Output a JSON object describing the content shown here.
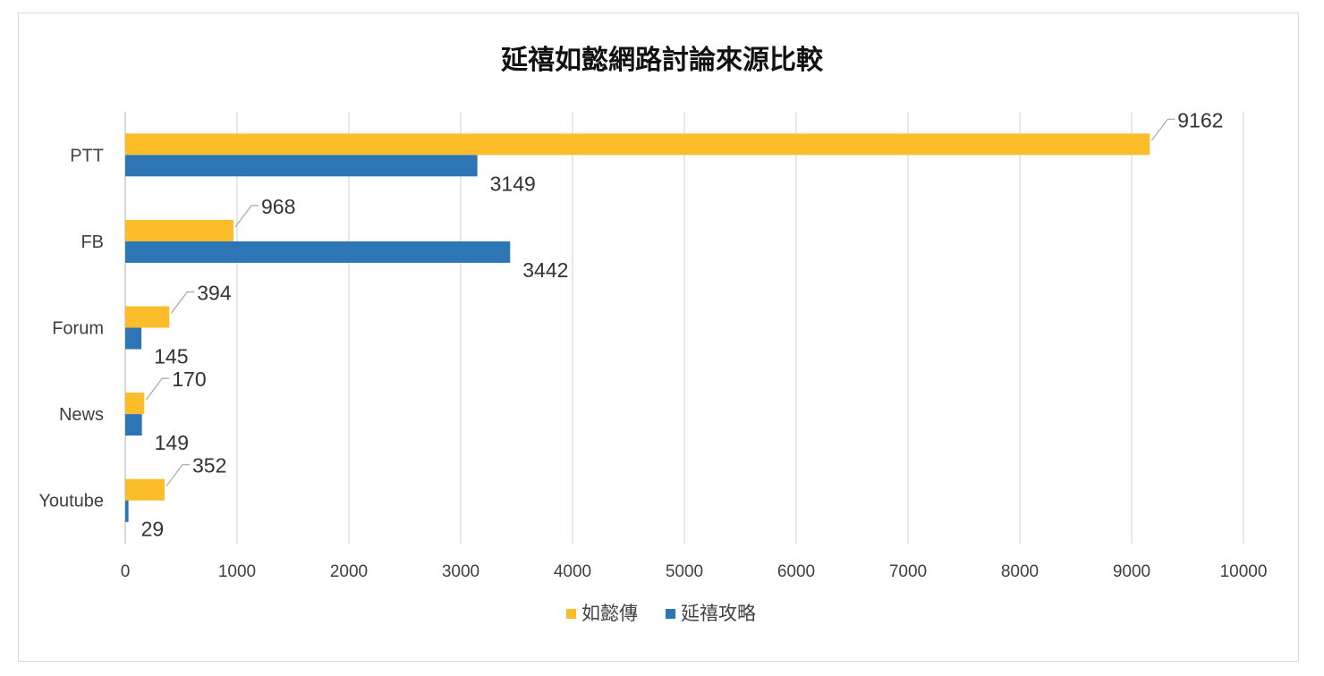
{
  "chart_data": {
    "type": "bar",
    "orientation": "horizontal",
    "title": "延禧如懿網路討論來源比較",
    "categories": [
      "PTT",
      "FB",
      "Forum",
      "News",
      "Youtube"
    ],
    "series": [
      {
        "name": "如懿傳",
        "color": "#FBBD2A",
        "values": [
          9162,
          968,
          394,
          170,
          352
        ]
      },
      {
        "name": "延禧攻略",
        "color": "#2E75B6",
        "values": [
          3149,
          3442,
          145,
          149,
          29
        ]
      }
    ],
    "xlim": [
      0,
      10000
    ],
    "x_ticks": [
      0,
      1000,
      2000,
      3000,
      4000,
      5000,
      6000,
      7000,
      8000,
      9000,
      10000
    ],
    "grid": true,
    "legend": "bottom-center",
    "data_labels": true
  }
}
